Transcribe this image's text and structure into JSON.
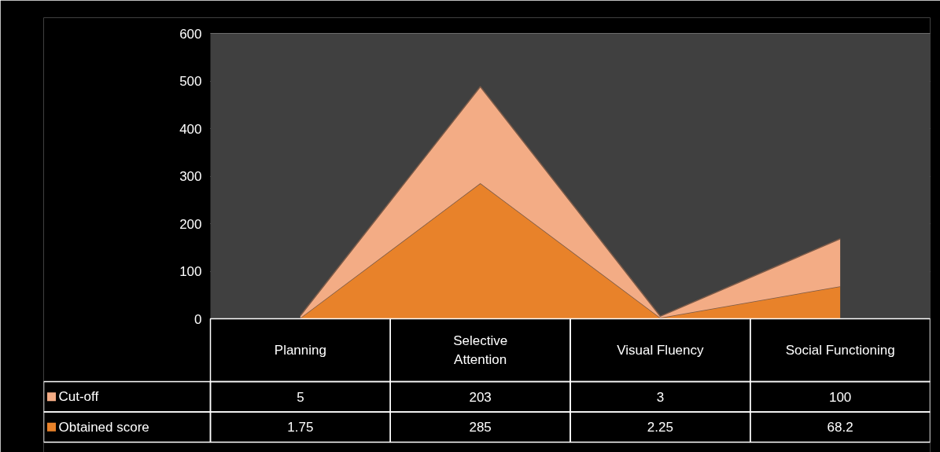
{
  "chart_data": {
    "type": "area",
    "stacked": true,
    "categories": [
      "Planning",
      "Selective\nAttention",
      "Visual Fluency",
      "Social Functioning"
    ],
    "series": [
      {
        "name": "Obtained score",
        "color": "#e8822a",
        "values": [
          1.75,
          285,
          2.25,
          68.2
        ]
      },
      {
        "name": "Cut-off",
        "color": "#f3ac85",
        "values": [
          5,
          203,
          3,
          100
        ]
      }
    ],
    "ylim": [
      0,
      600
    ],
    "yticks": [
      0,
      100,
      200,
      300,
      400,
      500,
      600
    ],
    "grid": "y",
    "legend": "bottom",
    "data_labels": true
  }
}
